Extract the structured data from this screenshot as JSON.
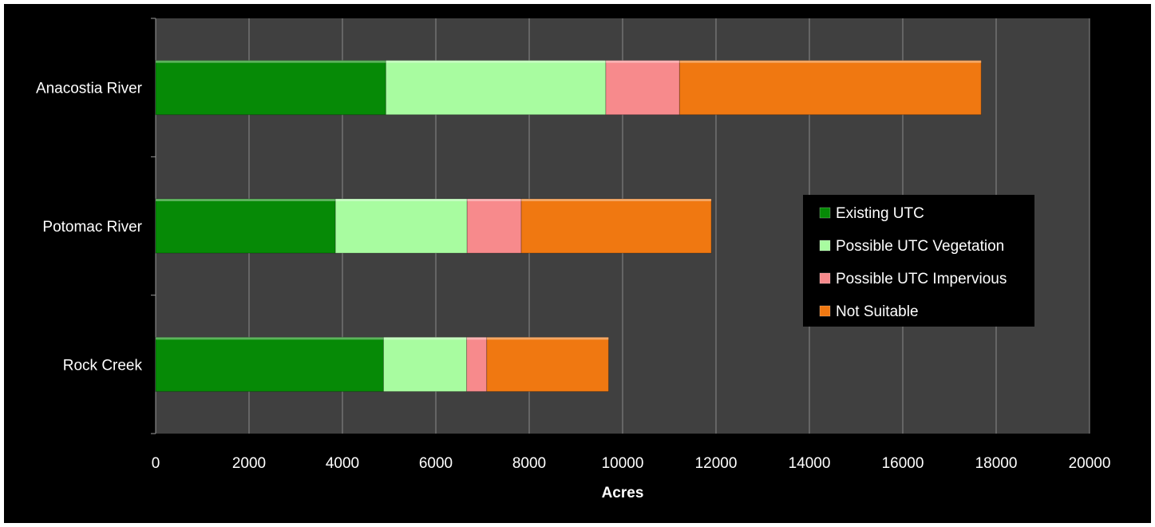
{
  "chart_data": {
    "type": "bar",
    "orientation": "horizontal",
    "stacked": true,
    "title": "",
    "xlabel": "Acres",
    "ylabel": "",
    "xlim": [
      0,
      20000
    ],
    "x_ticks": [
      0,
      2000,
      4000,
      6000,
      8000,
      10000,
      12000,
      14000,
      16000,
      18000,
      20000
    ],
    "categories": [
      "Anacostia River",
      "Potomac River",
      "Rock Creek"
    ],
    "series": [
      {
        "name": "Existing UTC",
        "color": "#068a06",
        "values": [
          4930,
          3850,
          4880
        ]
      },
      {
        "name": "Possible UTC Vegetation",
        "color": "#a8fca0",
        "values": [
          4710,
          2820,
          1780
        ]
      },
      {
        "name": "Possible UTC Impervious",
        "color": "#f78a8c",
        "values": [
          1580,
          1160,
          430
        ]
      },
      {
        "name": "Not Suitable",
        "color": "#f07811",
        "values": [
          6460,
          4070,
          2610
        ]
      }
    ],
    "grid": true,
    "legend_position": "right",
    "colors": {
      "background": "#000000",
      "plot_area": "#404040",
      "gridline": "#8a8a8a",
      "text": "#ffffff"
    }
  }
}
